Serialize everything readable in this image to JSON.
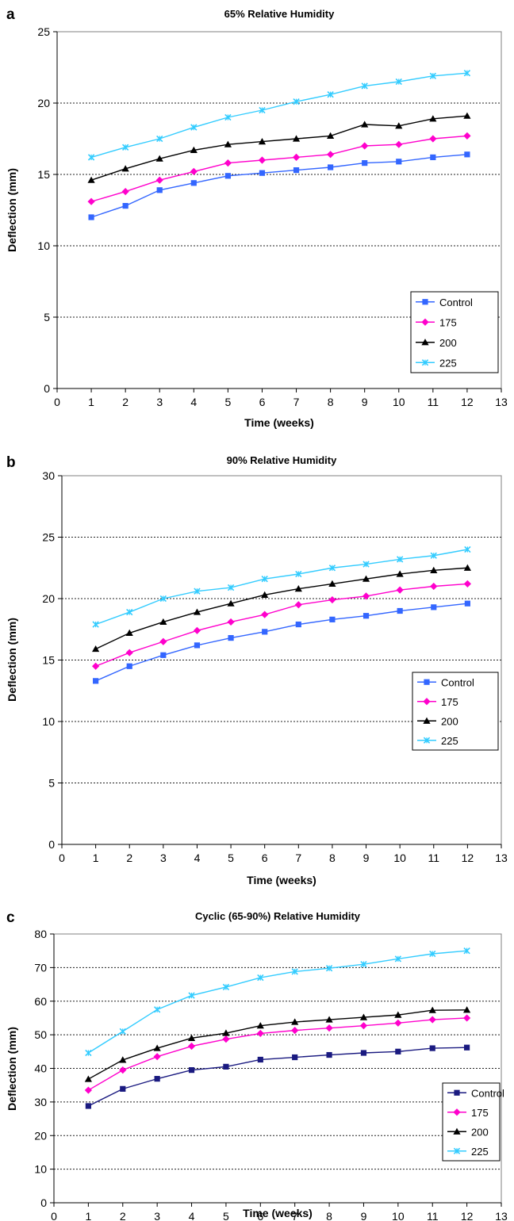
{
  "chart_data": [
    {
      "panel_letter": "a",
      "type": "line",
      "title": "65% Relative Humidity",
      "xlabel": "Time (weeks)",
      "ylabel": "Deflection (mm)",
      "xlim": [
        0,
        13
      ],
      "ylim": [
        0,
        25
      ],
      "xticks": [
        "0",
        "1",
        "2",
        "3",
        "4",
        "5",
        "6",
        "7",
        "8",
        "9",
        "10",
        "11",
        "12",
        "13"
      ],
      "yticks": [
        "0",
        "5",
        "10",
        "15",
        "20",
        "25"
      ],
      "grid": "horizontal dotted",
      "legend": "bottom-right",
      "x": [
        1,
        2,
        3,
        4,
        5,
        6,
        7,
        8,
        9,
        10,
        11,
        12
      ],
      "series": [
        {
          "name": "Control",
          "color": "#3366ff",
          "marker": "square",
          "values": [
            12.0,
            12.8,
            13.9,
            14.4,
            14.9,
            15.1,
            15.3,
            15.5,
            15.8,
            15.9,
            16.2,
            16.4
          ]
        },
        {
          "name": "175",
          "color": "#ff00cc",
          "marker": "diamond",
          "values": [
            13.1,
            13.8,
            14.6,
            15.2,
            15.8,
            16.0,
            16.2,
            16.4,
            17.0,
            17.1,
            17.5,
            17.7
          ]
        },
        {
          "name": "200",
          "color": "#000000",
          "marker": "triangle",
          "values": [
            14.6,
            15.4,
            16.1,
            16.7,
            17.1,
            17.3,
            17.5,
            17.7,
            18.5,
            18.4,
            18.9,
            19.1
          ]
        },
        {
          "name": "225",
          "color": "#33ccff",
          "marker": "x",
          "values": [
            16.2,
            16.9,
            17.5,
            18.3,
            19.0,
            19.5,
            20.1,
            20.6,
            21.2,
            21.5,
            21.9,
            22.1
          ]
        }
      ]
    },
    {
      "panel_letter": "b",
      "type": "line",
      "title": "90% Relative Humidity",
      "xlabel": "Time (weeks)",
      "ylabel": "Deflection (mm)",
      "xlim": [
        0,
        13
      ],
      "ylim": [
        0,
        30
      ],
      "xticks": [
        "0",
        "1",
        "2",
        "3",
        "4",
        "5",
        "6",
        "7",
        "8",
        "9",
        "10",
        "11",
        "12",
        "13"
      ],
      "yticks": [
        "0",
        "5",
        "10",
        "15",
        "20",
        "25",
        "30"
      ],
      "grid": "horizontal dotted",
      "legend": "bottom-right",
      "x": [
        1,
        2,
        3,
        4,
        5,
        6,
        7,
        8,
        9,
        10,
        11,
        12
      ],
      "series": [
        {
          "name": "Control",
          "color": "#3366ff",
          "marker": "square",
          "values": [
            13.3,
            14.5,
            15.4,
            16.2,
            16.8,
            17.3,
            17.9,
            18.3,
            18.6,
            19.0,
            19.3,
            19.6
          ]
        },
        {
          "name": "175",
          "color": "#ff00cc",
          "marker": "diamond",
          "values": [
            14.5,
            15.6,
            16.5,
            17.4,
            18.1,
            18.7,
            19.5,
            19.9,
            20.2,
            20.7,
            21.0,
            21.2
          ]
        },
        {
          "name": "200",
          "color": "#000000",
          "marker": "triangle",
          "values": [
            15.9,
            17.2,
            18.1,
            18.9,
            19.6,
            20.3,
            20.8,
            21.2,
            21.6,
            22.0,
            22.3,
            22.5
          ]
        },
        {
          "name": "225",
          "color": "#33ccff",
          "marker": "x",
          "values": [
            17.9,
            18.9,
            20.0,
            20.6,
            20.9,
            21.6,
            22.0,
            22.5,
            22.8,
            23.2,
            23.5,
            24.0
          ]
        }
      ]
    },
    {
      "panel_letter": "c",
      "type": "line",
      "title": "Cyclic (65-90%) Relative Humidity",
      "xlabel": "Time (weeks)",
      "ylabel": "Deflection (mm)",
      "xlim": [
        0,
        13
      ],
      "ylim": [
        0,
        80
      ],
      "xticks": [
        "0",
        "1",
        "2",
        "3",
        "4",
        "5",
        "6",
        "7",
        "8",
        "9",
        "10",
        "11",
        "12",
        "13"
      ],
      "yticks": [
        "0",
        "10",
        "20",
        "30",
        "40",
        "50",
        "60",
        "70",
        "80"
      ],
      "grid": "horizontal dotted",
      "legend": "bottom-right",
      "x": [
        1,
        2,
        3,
        4,
        5,
        6,
        7,
        8,
        9,
        10,
        11,
        12
      ],
      "series": [
        {
          "name": "Control",
          "color": "#1a1a80",
          "marker": "square",
          "values": [
            28.8,
            33.9,
            36.9,
            39.5,
            40.5,
            42.6,
            43.3,
            44.0,
            44.6,
            45.0,
            46.0,
            46.2
          ]
        },
        {
          "name": "175",
          "color": "#ff00cc",
          "marker": "diamond",
          "values": [
            33.5,
            39.5,
            43.5,
            46.6,
            48.7,
            50.4,
            51.3,
            52.0,
            52.7,
            53.5,
            54.5,
            55.0
          ]
        },
        {
          "name": "200",
          "color": "#000000",
          "marker": "triangle",
          "values": [
            36.8,
            42.5,
            46.0,
            49.0,
            50.5,
            52.7,
            53.8,
            54.5,
            55.2,
            55.9,
            57.3,
            57.4
          ]
        },
        {
          "name": "225",
          "color": "#33ccff",
          "marker": "x",
          "values": [
            44.6,
            51.0,
            57.5,
            61.7,
            64.2,
            67.0,
            68.8,
            69.8,
            71.0,
            72.6,
            74.1,
            75.0
          ]
        }
      ]
    }
  ]
}
